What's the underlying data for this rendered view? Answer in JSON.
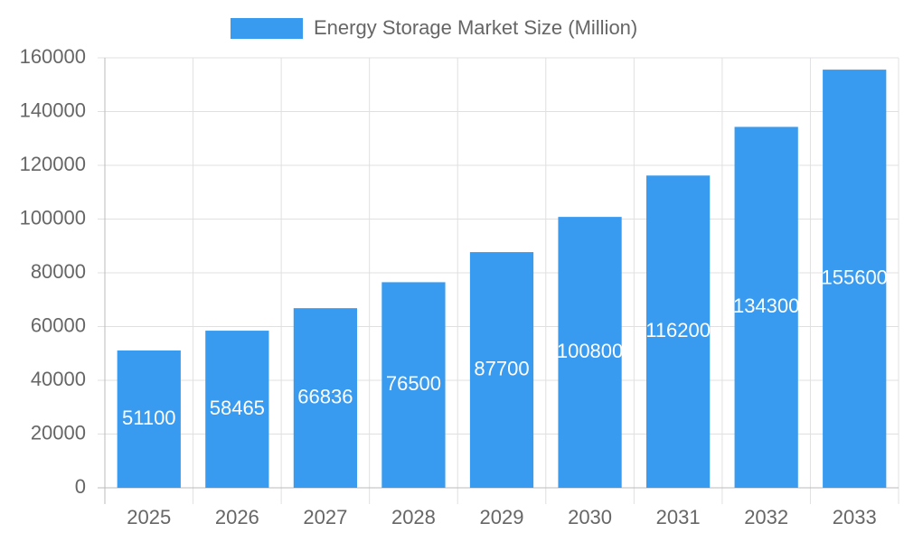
{
  "chart_data": {
    "type": "bar",
    "categories": [
      "2025",
      "2026",
      "2027",
      "2028",
      "2029",
      "2030",
      "2031",
      "2032",
      "2033"
    ],
    "series": [
      {
        "name": "Energy Storage Market Size (Million)",
        "color": "#389bf0",
        "values": [
          51100,
          58465,
          66836,
          76500,
          87700,
          100800,
          116200,
          134300,
          155600
        ]
      }
    ],
    "ylim": [
      0,
      160000
    ],
    "yticks": [
      0,
      20000,
      40000,
      60000,
      80000,
      100000,
      120000,
      140000,
      160000
    ],
    "grid": true,
    "legend": "top"
  }
}
